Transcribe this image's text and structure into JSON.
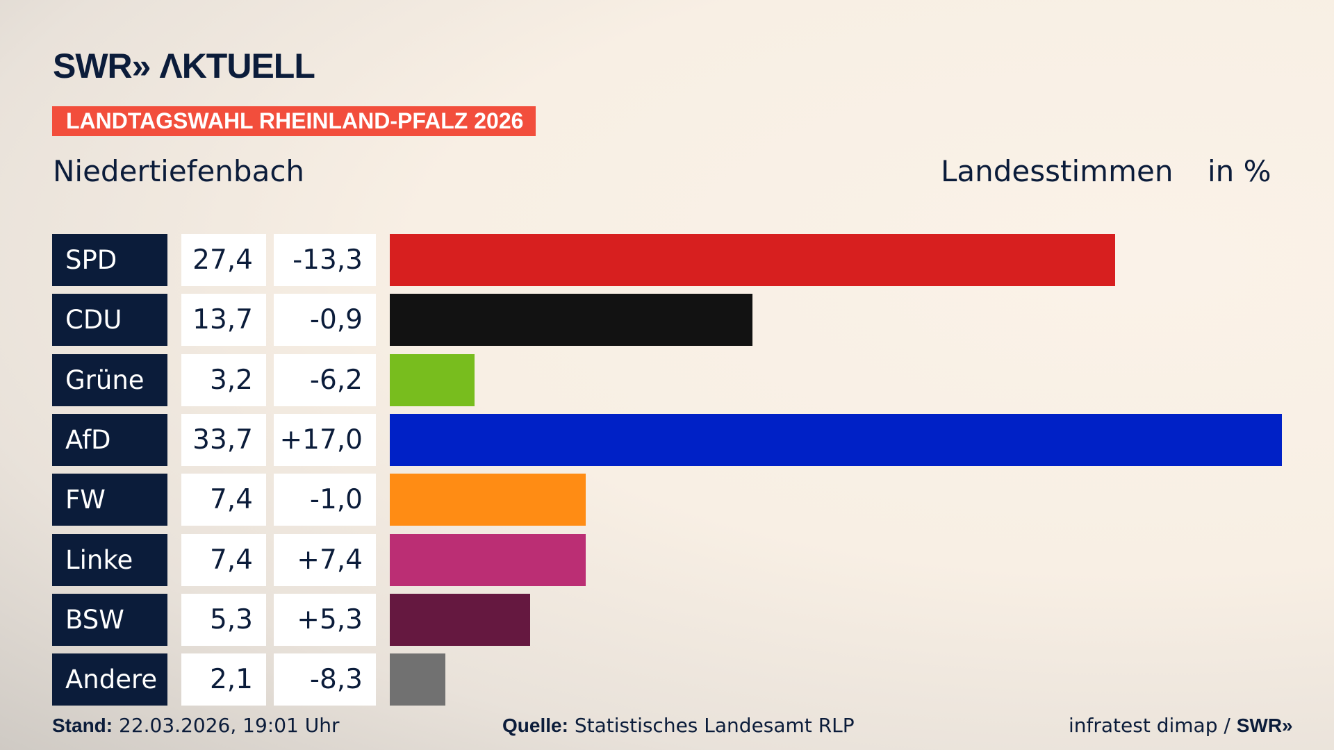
{
  "header": {
    "logo": "SWR» ΛKTUELL",
    "banner": "LANDTAGSWAHL RHEINLAND-PFALZ 2026",
    "place": "Niedertiefenbach",
    "measure": "Landesstimmen",
    "unit": "in %"
  },
  "chart_data": {
    "type": "bar",
    "orientation": "horizontal",
    "xlim": [
      0,
      33.7
    ],
    "categories": [
      "SPD",
      "CDU",
      "Grüne",
      "AfD",
      "FW",
      "Linke",
      "BSW",
      "Andere"
    ],
    "values": [
      27.4,
      13.7,
      3.2,
      33.7,
      7.4,
      7.4,
      5.3,
      2.1
    ],
    "value_labels": [
      "27,4",
      "13,7",
      "3,2",
      "33,7",
      "7,4",
      "7,4",
      "5,3",
      "2,1"
    ],
    "diff_labels": [
      "-13,3",
      "-0,9",
      "-6,2",
      "+17,0",
      "-1,0",
      "+7,4",
      "+5,3",
      "-8,3"
    ],
    "colors": [
      "#d71f1f",
      "#121212",
      "#78bd1e",
      "#0021c6",
      "#ff8c14",
      "#bb2e74",
      "#651840",
      "#717171"
    ]
  },
  "footer": {
    "stand_label": "Stand:",
    "stand_value": "22.03.2026, 19:01 Uhr",
    "source_label": "Quelle:",
    "source_value": "Statistisches Landesamt RLP",
    "credit": "infratest dimap / ",
    "credit_logo": "SWR»"
  }
}
